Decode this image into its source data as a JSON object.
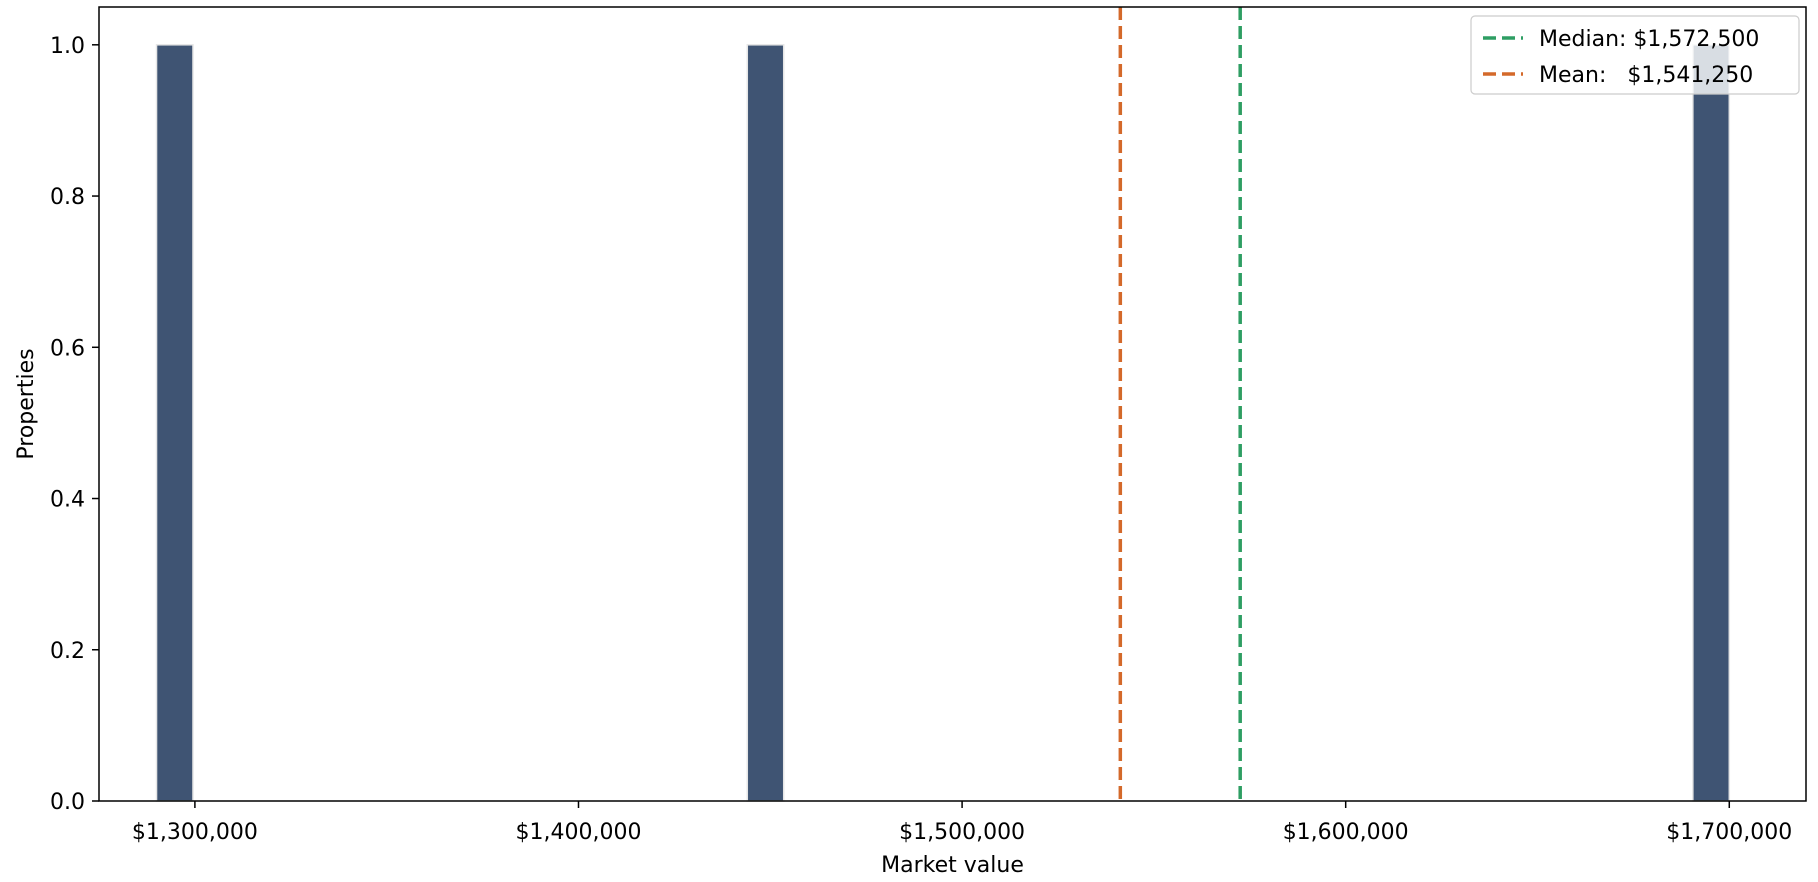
{
  "chart_data": {
    "type": "bar",
    "title": "",
    "xlabel": "Market value",
    "ylabel": "Properties",
    "xlim": [
      1275000,
      1720000
    ],
    "ylim": [
      0,
      1.05
    ],
    "x_ticks": [
      {
        "value": 1300000,
        "label": "$1,300,000"
      },
      {
        "value": 1400000,
        "label": "$1,400,000"
      },
      {
        "value": 1500000,
        "label": "$1,500,000"
      },
      {
        "value": 1600000,
        "label": "$1,600,000"
      },
      {
        "value": 1700000,
        "label": "$1,700,000"
      }
    ],
    "y_ticks": [
      {
        "value": 0.0,
        "label": "0.0"
      },
      {
        "value": 0.2,
        "label": "0.2"
      },
      {
        "value": 0.4,
        "label": "0.4"
      },
      {
        "value": 0.6,
        "label": "0.6"
      },
      {
        "value": 0.8,
        "label": "0.8"
      },
      {
        "value": 1.0,
        "label": "1.0"
      }
    ],
    "bars": [
      {
        "x_start": 1290000,
        "x_end": 1299500,
        "value": 1
      },
      {
        "x_start": 1444000,
        "x_end": 1453500,
        "value": 1
      },
      {
        "x_start": 1690500,
        "x_end": 1700000,
        "value": 1
      }
    ],
    "reference_lines": [
      {
        "name": "median",
        "value": 1572500,
        "label": "Median: $1,572,500",
        "color": "#2e9e63"
      },
      {
        "name": "mean",
        "value": 1541250,
        "label": "Mean:   $1,541,250",
        "color": "#d4692a"
      }
    ],
    "legend_position": "top-right",
    "grid": false,
    "colors": {
      "bar_fill": "#3f5473",
      "bar_edge": "#e6e6e6"
    }
  }
}
